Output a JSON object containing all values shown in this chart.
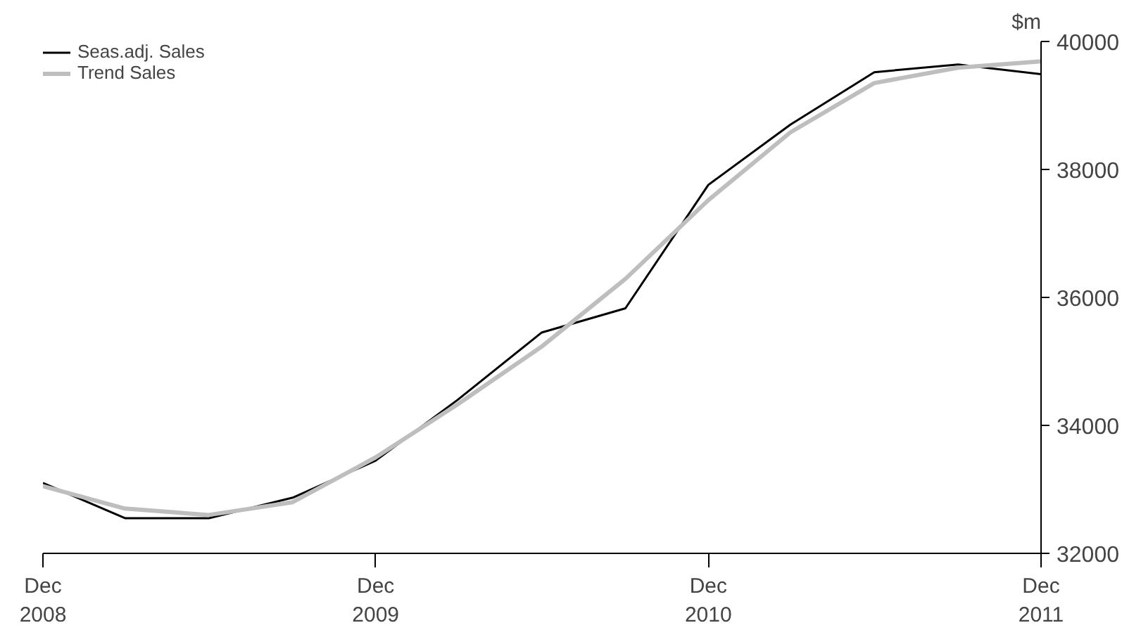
{
  "chart_data": {
    "type": "line",
    "ylabel": "$m",
    "x": [
      "2008-12",
      "2009-03",
      "2009-06",
      "2009-09",
      "2009-12",
      "2010-03",
      "2010-06",
      "2010-09",
      "2010-12",
      "2011-03",
      "2011-06",
      "2011-09",
      "2011-12"
    ],
    "series": [
      {
        "name": "Seas.adj. Sales",
        "color": "#000000",
        "values": [
          33100,
          32550,
          32550,
          32870,
          33450,
          34400,
          35450,
          35830,
          37760,
          38700,
          39520,
          39640,
          39490
        ]
      },
      {
        "name": "Trend Sales",
        "color": "#bebebe",
        "values": [
          33050,
          32700,
          32600,
          32800,
          33500,
          34330,
          35230,
          36290,
          37520,
          38580,
          39350,
          39590,
          39690
        ]
      }
    ],
    "xlim": [
      "2008-12",
      "2011-12"
    ],
    "xticks": [
      {
        "value": "2008-12",
        "label": "Dec\n2008"
      },
      {
        "value": "2009-12",
        "label": "Dec\n2009"
      },
      {
        "value": "2010-12",
        "label": "Dec\n2010"
      },
      {
        "value": "2011-12",
        "label": "Dec\n2011"
      }
    ],
    "ylim": [
      32000,
      40000
    ],
    "yticks": [
      32000,
      34000,
      36000,
      38000,
      40000
    ],
    "grid": false,
    "legend": "top left",
    "marker": "none",
    "line_style": "solid"
  }
}
